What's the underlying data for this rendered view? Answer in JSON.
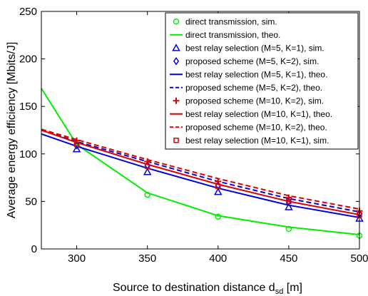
{
  "chart_data": {
    "type": "line",
    "xlabel": "Source to destination distance d",
    "xlabel_subscript": "sd",
    "xlabel_suffix": " [m]",
    "ylabel": "Average energy efficiency [Mbits/J]",
    "xlim": [
      275,
      500
    ],
    "ylim": [
      0,
      250
    ],
    "xticks": [
      300,
      350,
      400,
      450,
      500
    ],
    "yticks": [
      0,
      50,
      100,
      150,
      200,
      250
    ],
    "grid": false,
    "legend_position": "top-right",
    "series": [
      {
        "name": "direct transmission, sim.",
        "kind": "markers",
        "marker": "circle",
        "color": "#00ee00",
        "x": [
          300,
          350,
          400,
          450,
          500
        ],
        "y": [
          110,
          57,
          34,
          21,
          14
        ]
      },
      {
        "name": "direct transmission, theo.",
        "kind": "line",
        "dash": "solid",
        "color": "#00ee00",
        "x": [
          275,
          300,
          350,
          400,
          450,
          500
        ],
        "y": [
          169,
          110,
          59,
          35,
          23,
          15
        ]
      },
      {
        "name": "best relay selection (M=5, K=1), sim.",
        "kind": "markers",
        "marker": "triangle",
        "color": "#0000dd",
        "x": [
          300,
          350,
          400,
          450,
          500
        ],
        "y": [
          105,
          81,
          60,
          44,
          32
        ]
      },
      {
        "name": "proposed scheme (M=5, K=2), sim.",
        "kind": "markers",
        "marker": "diamond",
        "color": "#0000dd",
        "x": [
          300,
          350,
          400,
          450,
          500
        ],
        "y": [
          109,
          88,
          67,
          50,
          37
        ]
      },
      {
        "name": "best relay selection (M=5, K=1), theo.",
        "kind": "line",
        "dash": "solid",
        "color": "#0000dd",
        "x": [
          275,
          300,
          350,
          400,
          450,
          500
        ],
        "y": [
          121,
          108,
          85,
          64,
          46,
          33
        ]
      },
      {
        "name": "proposed scheme (M=5, K=2), theo.",
        "kind": "line",
        "dash": "dashed",
        "color": "#0000dd",
        "x": [
          275,
          300,
          350,
          400,
          450,
          500
        ],
        "y": [
          125,
          113,
          92,
          71,
          53,
          39
        ]
      },
      {
        "name": "proposed scheme (M=10, K=2), sim.",
        "kind": "markers",
        "marker": "plus",
        "color": "#dd0000",
        "x": [
          300,
          350,
          400,
          450,
          500
        ],
        "y": [
          114,
          92,
          71,
          54,
          40
        ]
      },
      {
        "name": "best relay selection (M=10, K=1), theo.",
        "kind": "line",
        "dash": "solid",
        "color": "#dd0000",
        "x": [
          275,
          300,
          350,
          400,
          450,
          500
        ],
        "y": [
          125,
          112,
          89,
          68,
          50,
          36
        ]
      },
      {
        "name": "proposed scheme (M=10, K=2), theo.",
        "kind": "line",
        "dash": "dashed",
        "color": "#dd0000",
        "x": [
          275,
          300,
          350,
          400,
          450,
          500
        ],
        "y": [
          126,
          115,
          94,
          74,
          56,
          42
        ]
      },
      {
        "name": "best relay selection (M=10, K=1), sim.",
        "kind": "markers",
        "marker": "square",
        "color": "#dd0000",
        "x": [
          300,
          350,
          400,
          450,
          500
        ],
        "y": [
          110,
          87,
          66,
          50,
          36
        ]
      }
    ]
  }
}
